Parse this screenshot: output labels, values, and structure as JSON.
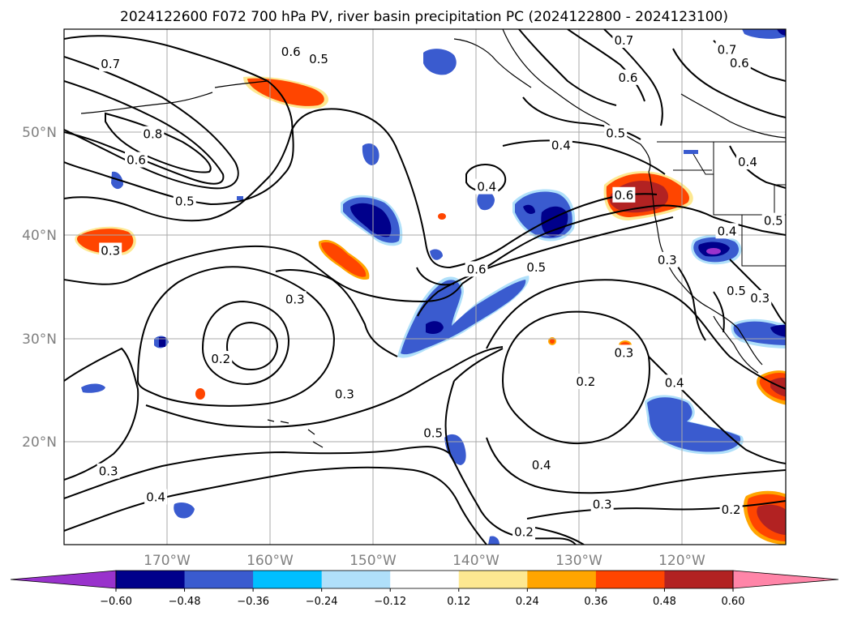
{
  "title": "2024122600 F072 700 hPa PV, river basin precipitation PC (2024122800 - 2024123100)",
  "chart_data": {
    "type": "contour-map",
    "title": "2024122600 F072 700 hPa PV, river basin precipitation PC (2024122800 - 2024123100)",
    "lon_range": [
      -180,
      -110
    ],
    "lat_range": [
      10,
      60
    ],
    "grid": true,
    "x_ticks": [
      "170°W",
      "160°W",
      "150°W",
      "140°W",
      "130°W",
      "120°W"
    ],
    "x_tick_values": [
      -170,
      -160,
      -150,
      -140,
      -130,
      -120
    ],
    "y_ticks": [
      "50°N",
      "40°N",
      "30°N",
      "20°N"
    ],
    "y_tick_values": [
      50,
      40,
      30,
      20
    ],
    "colorbar": {
      "orientation": "horizontal",
      "extend": "both",
      "tick_labels": [
        "−0.60",
        "−0.48",
        "−0.36",
        "−0.24",
        "−0.12",
        "0.12",
        "0.24",
        "0.36",
        "0.48",
        "0.60"
      ],
      "boundaries": [
        -0.6,
        -0.48,
        -0.36,
        -0.24,
        -0.12,
        0.12,
        0.24,
        0.36,
        0.48,
        0.6
      ],
      "colors": [
        "#9932cc",
        "#00008b",
        "#3a5bcf",
        "#00bfff",
        "#b0e0fa",
        "#ffffff",
        "#fde891",
        "#ffa500",
        "#ff4500",
        "#b22222",
        "#ff85a8"
      ]
    },
    "pv_contour_labels": [
      {
        "text": "0.7",
        "lon": -175.5,
        "lat": 56.6
      },
      {
        "text": "0.6",
        "lon": -158,
        "lat": 57.8
      },
      {
        "text": "0.5",
        "lon": -155.3,
        "lat": 57.1
      },
      {
        "text": "0.8",
        "lon": -171.4,
        "lat": 49.8
      },
      {
        "text": "0.6",
        "lon": -173,
        "lat": 47.3
      },
      {
        "text": "0.5",
        "lon": -168.3,
        "lat": 43.3
      },
      {
        "text": "0.3",
        "lon": -175.5,
        "lat": 38.5
      },
      {
        "text": "0.4",
        "lon": -131.8,
        "lat": 48.7
      },
      {
        "text": "0.4",
        "lon": -139,
        "lat": 44.7
      },
      {
        "text": "0.6",
        "lon": -125.7,
        "lat": 43.9
      },
      {
        "text": "0.5",
        "lon": -126.5,
        "lat": 49.9
      },
      {
        "text": "0.6",
        "lon": -140,
        "lat": 36.7
      },
      {
        "text": "0.5",
        "lon": -134.2,
        "lat": 36.9
      },
      {
        "text": "0.3",
        "lon": -121.5,
        "lat": 37.6
      },
      {
        "text": "0.4",
        "lon": -115.7,
        "lat": 40.4
      },
      {
        "text": "0.5",
        "lon": -111.2,
        "lat": 41.4
      },
      {
        "text": "0.4",
        "lon": -113.7,
        "lat": 47.1
      },
      {
        "text": "0.3",
        "lon": -157.6,
        "lat": 33.8
      },
      {
        "text": "0.2",
        "lon": -164.8,
        "lat": 28
      },
      {
        "text": "0.3",
        "lon": -152.8,
        "lat": 24.6
      },
      {
        "text": "0.5",
        "lon": -144.2,
        "lat": 20.8
      },
      {
        "text": "0.4",
        "lon": -133.7,
        "lat": 17.7
      },
      {
        "text": "0.3",
        "lon": -125.7,
        "lat": 28.6
      },
      {
        "text": "0.4",
        "lon": -120.8,
        "lat": 25.7
      },
      {
        "text": "0.2",
        "lon": -129.4,
        "lat": 25.8
      },
      {
        "text": "0.3",
        "lon": -112.5,
        "lat": 33.9
      },
      {
        "text": "0.5",
        "lon": -114.8,
        "lat": 34.6
      },
      {
        "text": "0.3",
        "lon": -175.7,
        "lat": 17.1
      },
      {
        "text": "0.4",
        "lon": -171.1,
        "lat": 14.6
      },
      {
        "text": "0.3",
        "lon": -127.8,
        "lat": 13.9
      },
      {
        "text": "0.2",
        "lon": -115.3,
        "lat": 13.4
      },
      {
        "text": "0.2",
        "lon": -135.4,
        "lat": 11.2
      },
      {
        "text": "0.7",
        "lon": -115.7,
        "lat": 58
      },
      {
        "text": "0.6",
        "lon": -114.5,
        "lat": 56.7
      },
      {
        "text": "0.6",
        "lon": -125.3,
        "lat": 55.3
      },
      {
        "text": "0.7",
        "lon": -125.7,
        "lat": 58.9
      }
    ]
  }
}
